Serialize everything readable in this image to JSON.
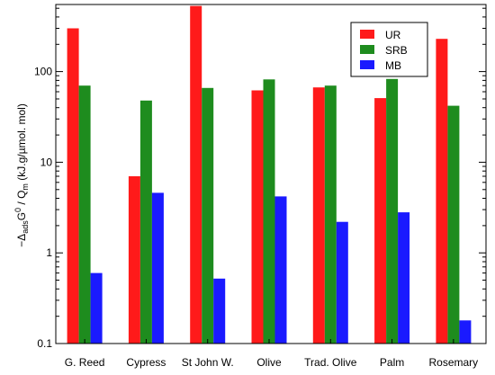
{
  "chart_data": {
    "type": "bar",
    "scale": "log",
    "ylabel": "−Δ_ads G^0 / Q_m (kJ.g/µmol. mol)",
    "ylabel_parts": {
      "minus_delta": "−Δ",
      "ads": "ads",
      "G": "G",
      "zero": "0",
      "slash_Q": " / Q",
      "m": "m",
      "units": " (kJ.g/µmol. mol)"
    },
    "ylim": [
      0.1,
      550
    ],
    "yticks": [
      0.1,
      1,
      10,
      100
    ],
    "ytick_labels": [
      "0.1",
      "1",
      "10",
      "100"
    ],
    "categories": [
      "G. Reed",
      "Cypress",
      "St John W.",
      "Olive",
      "Trad. Olive",
      "Palm",
      "Rosemary"
    ],
    "legend": {
      "position": "top-right"
    },
    "series": [
      {
        "name": "UR",
        "color": "#ff1a1a",
        "values": [
          300,
          7,
          530,
          62,
          67,
          51,
          230
        ]
      },
      {
        "name": "SRB",
        "color": "#1e8c1e",
        "values": [
          70,
          48,
          66,
          82,
          70,
          83,
          42
        ]
      },
      {
        "name": "MB",
        "color": "#1a1aff",
        "values": [
          0.6,
          4.6,
          0.52,
          4.2,
          2.2,
          2.8,
          0.18
        ]
      }
    ],
    "grid": false
  }
}
